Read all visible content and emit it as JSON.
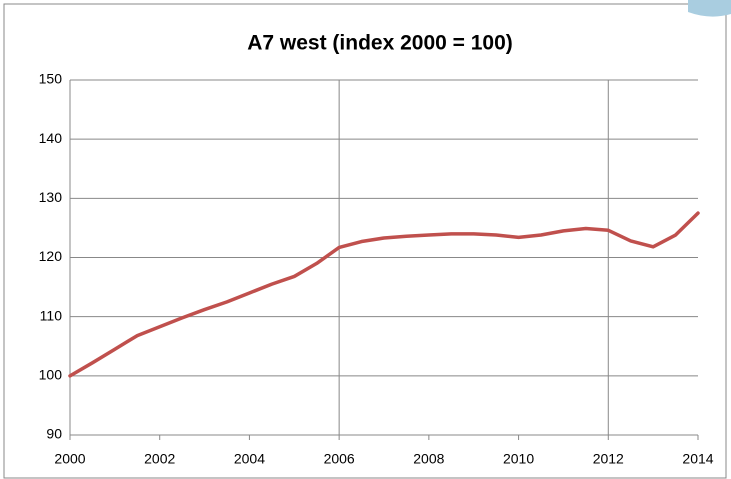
{
  "chart_data": {
    "type": "line",
    "title": "A7 west (index 2000 = 100)",
    "x": [
      2000,
      2000.5,
      2001,
      2001.5,
      2002,
      2002.5,
      2003,
      2003.5,
      2004,
      2004.5,
      2005,
      2005.5,
      2006,
      2006.5,
      2007,
      2007.5,
      2008,
      2008.5,
      2009,
      2009.5,
      2010,
      2010.5,
      2011,
      2011.5,
      2012,
      2012.5,
      2013,
      2013.5,
      2014
    ],
    "series": [
      {
        "name": "A7 west",
        "color": "#c0504d",
        "values": [
          100,
          102.2,
          104.5,
          106.8,
          108.3,
          109.8,
          111.2,
          112.5,
          114,
          115.5,
          116.8,
          119,
          121.7,
          122.7,
          123.3,
          123.6,
          123.8,
          124,
          124,
          123.8,
          123.4,
          123.8,
          124.5,
          124.9,
          124.6,
          122.8,
          121.8,
          123.8,
          127.5
        ]
      }
    ],
    "xlim": [
      2000,
      2014
    ],
    "xticks": [
      2000,
      2002,
      2004,
      2006,
      2008,
      2010,
      2012,
      2014
    ],
    "ylim": [
      90,
      150
    ],
    "yticks": [
      90,
      100,
      110,
      120,
      130,
      140,
      150
    ],
    "grid": true,
    "vertical_lines": [
      2006,
      2012
    ]
  }
}
